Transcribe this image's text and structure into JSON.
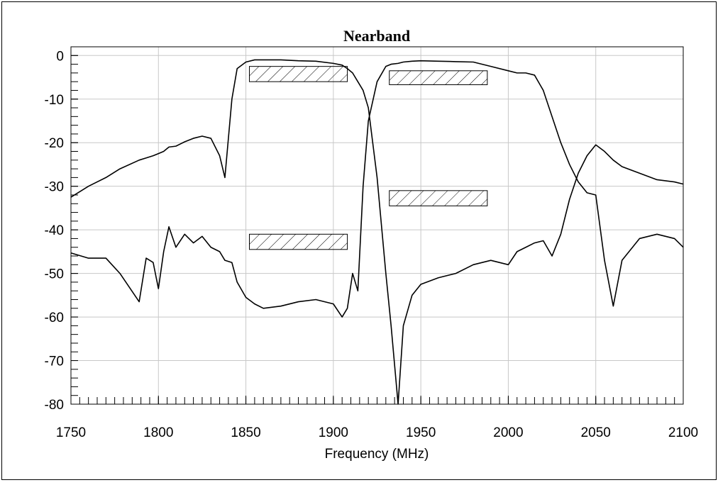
{
  "chart_data": {
    "type": "line",
    "title": "Nearband",
    "x_label": "Frequency (MHz)",
    "x": [
      1750,
      1760,
      1770,
      1778,
      1789,
      1793,
      1797,
      1800,
      1803,
      1806,
      1810,
      1815,
      1820,
      1825,
      1830,
      1835,
      1838,
      1842,
      1845,
      1850,
      1855,
      1860,
      1870,
      1880,
      1890,
      1900,
      1905,
      1908,
      1911,
      1914,
      1917,
      1920,
      1925,
      1930,
      1933,
      1937,
      1940,
      1945,
      1950,
      1960,
      1970,
      1980,
      1990,
      2000,
      2005,
      2010,
      2015,
      2020,
      2025,
      2030,
      2035,
      2040,
      2045,
      2050,
      2055,
      2060,
      2065,
      2075,
      2085,
      2095,
      2100
    ],
    "series": [
      {
        "color": "#000000",
        "values": [
          -32.5,
          -30,
          -28,
          -26,
          -24,
          -23.5,
          -23,
          -22.5,
          -22,
          -21,
          -20.8,
          -19.8,
          -19,
          -18.5,
          -19,
          -23,
          -28,
          -10,
          -3,
          -1.5,
          -1,
          -1,
          -1,
          -1.2,
          -1.3,
          -1.8,
          -2.2,
          -3,
          -4,
          -6,
          -8,
          -12,
          -28,
          -50,
          -62,
          -80,
          -62,
          -55,
          -52.5,
          -51,
          -50,
          -48,
          -47,
          -48,
          -45,
          -44,
          -43,
          -42.5,
          -46,
          -41,
          -33,
          -27,
          -23,
          -20.5,
          -22,
          -24,
          -25.5,
          -27,
          -28.5,
          -29,
          -29.5
        ]
      },
      {
        "color": "#000000",
        "values": [
          -45.3,
          -46.5,
          -46.5,
          -50,
          -56.5,
          -46.5,
          -47.5,
          -53.5,
          -45,
          -39.3,
          -44,
          -41,
          -43,
          -41.5,
          -44,
          -45,
          -47,
          -47.5,
          -52,
          -55.5,
          -57,
          -58,
          -57.5,
          -56.5,
          -56,
          -57,
          -60,
          -58,
          -50,
          -54,
          -30,
          -15,
          -6,
          -2.5,
          -2,
          -1.8,
          -1.5,
          -1.3,
          -1.2,
          -1.3,
          -1.4,
          -1.5,
          -2.5,
          -3.5,
          -4,
          -4,
          -4.5,
          -8,
          -14,
          -20,
          -25,
          -29,
          -31.5,
          -32,
          -47,
          -57.5,
          -47,
          -42,
          -41,
          -42,
          -44
        ]
      }
    ],
    "masks": [
      {
        "x": [
          1852,
          1908
        ],
        "y": [
          -2.5,
          -6
        ]
      },
      {
        "x": [
          1932,
          1988
        ],
        "y": [
          -3.5,
          -6.7
        ]
      },
      {
        "x": [
          1932,
          1988
        ],
        "y": [
          -31,
          -34.5
        ]
      },
      {
        "x": [
          1852,
          1908
        ],
        "y": [
          -41,
          -44.5
        ]
      }
    ],
    "xlim": [
      1750,
      2100
    ],
    "xticks": [
      1750,
      1800,
      1850,
      1900,
      1950,
      2000,
      2050,
      2100
    ],
    "ylim": [
      -80,
      2
    ],
    "yticks": [
      0,
      -10,
      -20,
      -30,
      -40,
      -50,
      -60,
      -70,
      -80
    ],
    "minor_ticks": {
      "x": 5,
      "y": 2
    },
    "grid": true
  }
}
